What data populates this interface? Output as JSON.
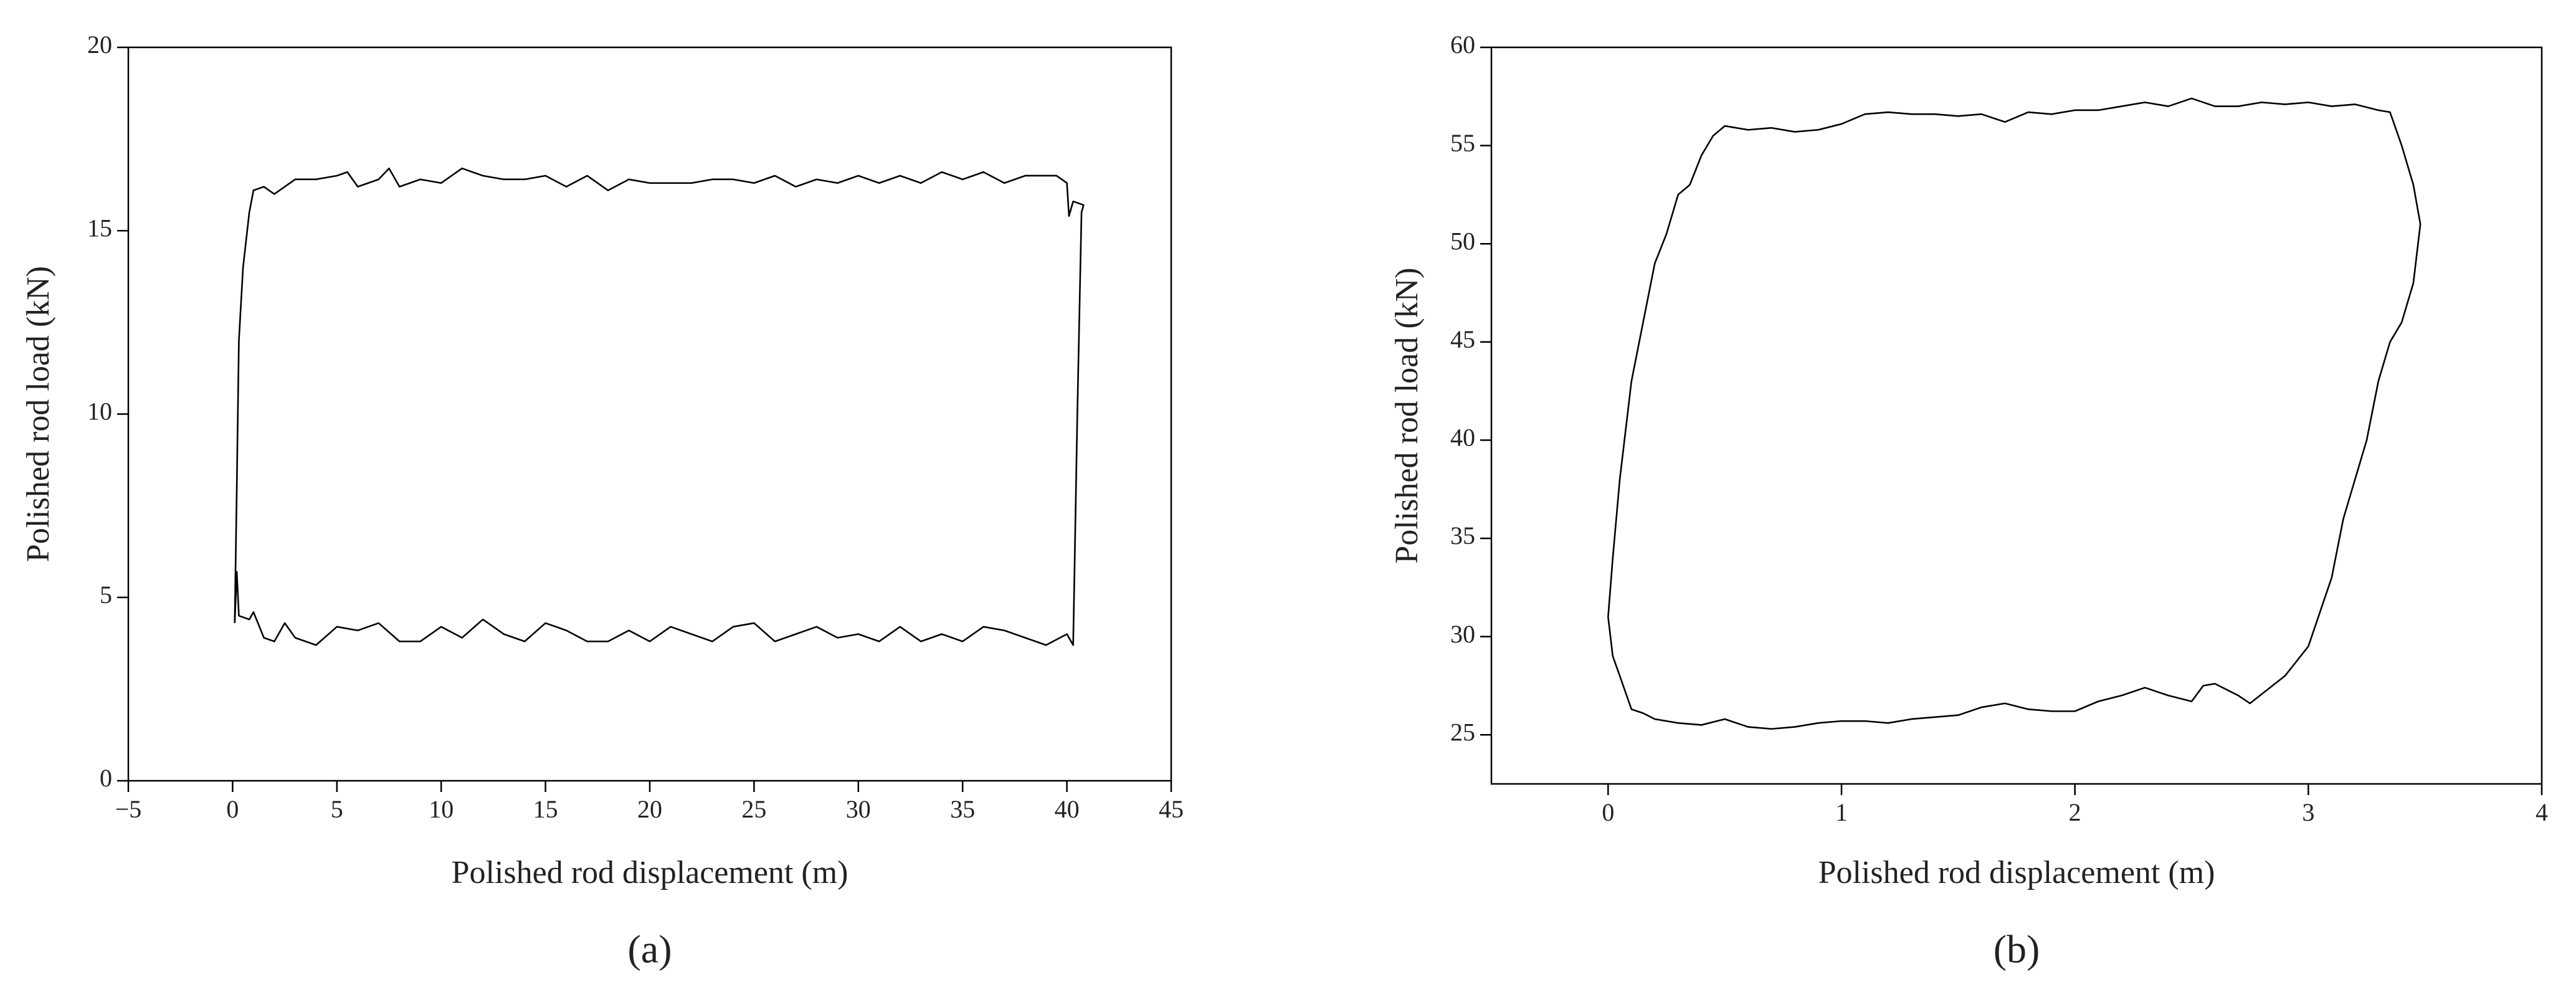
{
  "chart_data": [
    {
      "type": "line",
      "xlabel": "Polished rod displacement (m)",
      "ylabel": "Polished rod load (kN)",
      "panel_label": "(a)",
      "xlim": [
        -5,
        45
      ],
      "xticks": [
        {
          "value": -5,
          "label": "−5"
        },
        0,
        5,
        10,
        15,
        20,
        25,
        30,
        35,
        40,
        45
      ],
      "ylim": [
        0,
        20
      ],
      "yticks": [
        0,
        5,
        10,
        15,
        20
      ],
      "series": [
        {
          "color": "#000000",
          "x": [
            0.1,
            0.2,
            0.3,
            0.8,
            1,
            1.5,
            2,
            2.5,
            3,
            4,
            5,
            6,
            7,
            8,
            9,
            10,
            11,
            12,
            13,
            14,
            15,
            16,
            17,
            18,
            19,
            20,
            21,
            22,
            23,
            24,
            25,
            26,
            27,
            28,
            29,
            30,
            31,
            32,
            33,
            34,
            35,
            36,
            37,
            38,
            39,
            40,
            40.3,
            40.5,
            40.7,
            40.8,
            40.3,
            40.1,
            40,
            39.5,
            38,
            37,
            36,
            35,
            34,
            33,
            32,
            31,
            30,
            29,
            28,
            27,
            26,
            25,
            24,
            23,
            22,
            21,
            20,
            19,
            18,
            17,
            16,
            15,
            14,
            13,
            12,
            11,
            10,
            9,
            8,
            7.5,
            7,
            6,
            5.5,
            5,
            4,
            3,
            2,
            1.5,
            1,
            0.8,
            0.5,
            0.3,
            0.2,
            0.1
          ],
          "y": [
            4.3,
            5.7,
            4.5,
            4.4,
            4.6,
            3.9,
            3.8,
            4.3,
            3.9,
            3.7,
            4.2,
            4.1,
            4.3,
            3.8,
            3.8,
            4.2,
            3.9,
            4.4,
            4.0,
            3.8,
            4.3,
            4.1,
            3.8,
            3.8,
            4.1,
            3.8,
            4.2,
            4.0,
            3.8,
            4.2,
            4.3,
            3.8,
            4.0,
            4.2,
            3.9,
            4.0,
            3.8,
            4.2,
            3.8,
            4.0,
            3.8,
            4.2,
            4.1,
            3.9,
            3.7,
            4.0,
            3.7,
            10,
            15.5,
            15.7,
            15.8,
            15.4,
            16.3,
            16.5,
            16.5,
            16.3,
            16.6,
            16.4,
            16.6,
            16.3,
            16.5,
            16.3,
            16.5,
            16.3,
            16.4,
            16.2,
            16.5,
            16.3,
            16.4,
            16.4,
            16.3,
            16.3,
            16.3,
            16.4,
            16.1,
            16.5,
            16.2,
            16.5,
            16.4,
            16.4,
            16.5,
            16.7,
            16.3,
            16.4,
            16.2,
            16.7,
            16.4,
            16.2,
            16.6,
            16.5,
            16.4,
            16.4,
            16.0,
            16.2,
            16.1,
            15.5,
            14,
            12,
            8,
            4.3
          ]
        }
      ]
    },
    {
      "type": "line",
      "xlabel": "Polished rod displacement (m)",
      "ylabel": "Polished rod load (kN)",
      "panel_label": "(b)",
      "xlim": [
        -0.5,
        4
      ],
      "xticks": [
        0,
        1,
        2,
        3,
        4
      ],
      "ylim": [
        22.5,
        60
      ],
      "yticks": [
        25,
        30,
        35,
        40,
        45,
        50,
        55,
        60
      ],
      "series": [
        {
          "color": "#000000",
          "x": [
            0,
            0.02,
            0.05,
            0.1,
            0.15,
            0.2,
            0.3,
            0.4,
            0.5,
            0.6,
            0.7,
            0.8,
            0.9,
            1,
            1.1,
            1.2,
            1.3,
            1.4,
            1.5,
            1.6,
            1.7,
            1.8,
            1.9,
            2,
            2.1,
            2.2,
            2.3,
            2.4,
            2.5,
            2.55,
            2.6,
            2.7,
            2.75,
            2.9,
            3.0,
            3.1,
            3.15,
            3.2,
            3.25,
            3.3,
            3.35,
            3.4,
            3.45,
            3.48,
            3.45,
            3.4,
            3.35,
            3.3,
            3.2,
            3.1,
            3.0,
            2.9,
            2.8,
            2.7,
            2.6,
            2.5,
            2.4,
            2.3,
            2.2,
            2.1,
            2.0,
            1.9,
            1.8,
            1.7,
            1.6,
            1.5,
            1.4,
            1.3,
            1.2,
            1.1,
            1.0,
            0.9,
            0.8,
            0.7,
            0.6,
            0.5,
            0.45,
            0.4,
            0.35,
            0.3,
            0.25,
            0.2,
            0.15,
            0.1,
            0.05,
            0.02,
            0
          ],
          "y": [
            31,
            29,
            28,
            26.3,
            26.1,
            25.8,
            25.6,
            25.5,
            25.8,
            25.4,
            25.3,
            25.4,
            25.6,
            25.7,
            25.7,
            25.6,
            25.8,
            25.9,
            26.0,
            26.4,
            26.6,
            26.3,
            26.2,
            26.2,
            26.7,
            27.0,
            27.4,
            27.0,
            26.7,
            27.5,
            27.6,
            27.0,
            26.6,
            28,
            29.5,
            33,
            36,
            38,
            40,
            43,
            45,
            46,
            48,
            51,
            53,
            55,
            56.7,
            56.8,
            57.1,
            57.0,
            57.2,
            57.1,
            57.2,
            57.0,
            57.0,
            57.4,
            57.0,
            57.2,
            57.0,
            56.8,
            56.8,
            56.6,
            56.7,
            56.2,
            56.6,
            56.5,
            56.6,
            56.6,
            56.7,
            56.6,
            56.1,
            55.8,
            55.7,
            55.9,
            55.8,
            56,
            55.5,
            54.5,
            53,
            52.5,
            50.5,
            49,
            46,
            43,
            38,
            34,
            31
          ]
        }
      ]
    }
  ]
}
